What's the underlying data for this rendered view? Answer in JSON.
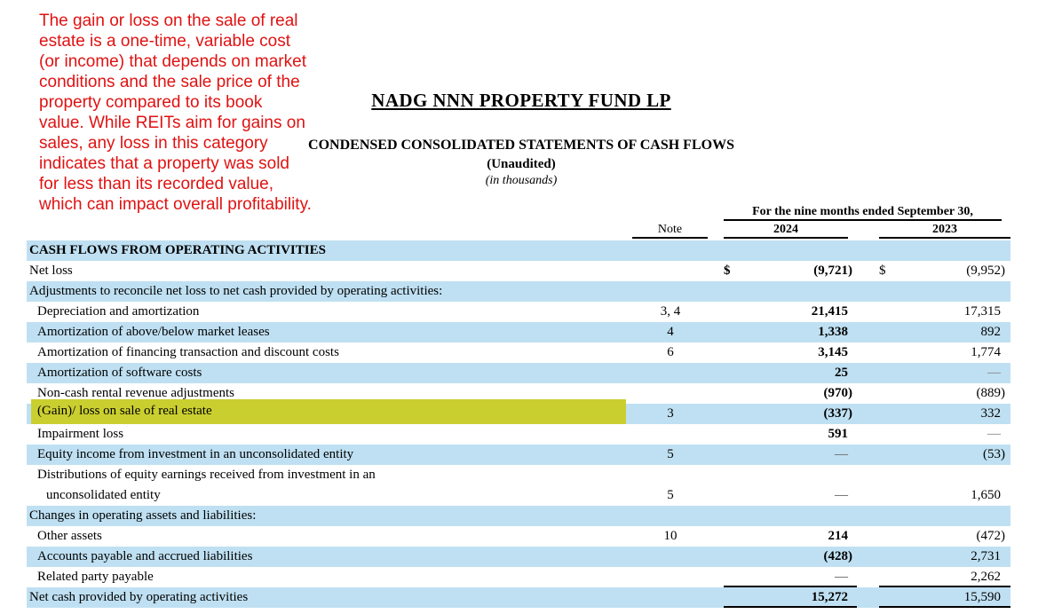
{
  "colors": {
    "red_annotation": "#e01212",
    "row_shade": "#bfe0f2",
    "yellow_highlight": "#cacf30"
  },
  "annotation": {
    "text": "The gain or loss on the sale of real\nestate is a one-time, variable cost\n(or income) that depends on market\nconditions and the sale price of the\nproperty compared to its book\nvalue. While REITs aim for gains on\nsales, any loss in this category\nindicates that a property was sold\nfor less than its recorded value,\nwhich can impact overall profitability."
  },
  "header": {
    "title": "NADG NNN PROPERTY FUND LP",
    "subtitle": "CONDENSED CONSOLIDATED STATEMENTS OF CASH FLOWS",
    "unaudited": "(Unaudited)",
    "units": "(in thousands)"
  },
  "table": {
    "period_header": "For the nine months ended September 30,",
    "note_header": "Note",
    "col_2024": "2024",
    "col_2023": "2023",
    "rows": [
      {
        "label": "CASH FLOWS FROM OPERATING ACTIVITIES",
        "bold": true,
        "shade": true
      },
      {
        "label": "Net loss",
        "cur24": "$",
        "v2024": "(9,721)",
        "cur23": "$",
        "v2023": "(9,952)"
      },
      {
        "label": "Adjustments to reconcile net loss to net cash provided by operating activities:",
        "shade": true
      },
      {
        "label": "Depreciation and amortization",
        "indent": true,
        "note": "3, 4",
        "v2024": "21,415",
        "v2023": "17,315"
      },
      {
        "label": "Amortization of above/below market leases",
        "indent": true,
        "note": "4",
        "v2024": "1,338",
        "v2023": "892",
        "shade": true
      },
      {
        "label": "Amortization of financing transaction and discount costs",
        "indent": true,
        "note": "6",
        "v2024": "3,145",
        "v2023": "1,774"
      },
      {
        "label": "Amortization of software costs",
        "indent": true,
        "v2024": "25",
        "v2023": "—",
        "shade": true
      },
      {
        "label": "Non-cash rental revenue adjustments",
        "indent": true,
        "v2024": "(970)",
        "v2023": "(889)"
      },
      {
        "label": "(Gain)/ loss on sale of real estate",
        "indent": true,
        "note": "3",
        "v2024": "(337)",
        "v2023": "332",
        "shade": true,
        "highlight": true
      },
      {
        "label": "Impairment loss",
        "indent": true,
        "v2024": "591",
        "v2023": "—"
      },
      {
        "label": "Equity income from investment in an unconsolidated entity",
        "indent": true,
        "note": "5",
        "v2024": "—",
        "v2023": "(53)",
        "shade": true
      },
      {
        "label": "Distributions of equity earnings received from investment in an",
        "label2": "unconsolidated entity",
        "indent": true,
        "note": "5",
        "v2024": "—",
        "v2023": "1,650",
        "tall": true
      },
      {
        "label": "Changes in operating assets and liabilities:",
        "shade": true
      },
      {
        "label": "Other assets",
        "indent": true,
        "note": "10",
        "v2024": "214",
        "v2023": "(472)"
      },
      {
        "label": "Accounts payable and accrued liabilities",
        "indent": true,
        "v2024": "(428)",
        "v2023": "2,731",
        "shade": true
      },
      {
        "label": "Related party payable",
        "indent": true,
        "v2024": "—",
        "v2023": "2,262",
        "rule": true
      },
      {
        "label": "Net cash provided by operating activities",
        "v2024": "15,272",
        "v2023": "15,590",
        "shade": true,
        "rule": true
      }
    ]
  }
}
